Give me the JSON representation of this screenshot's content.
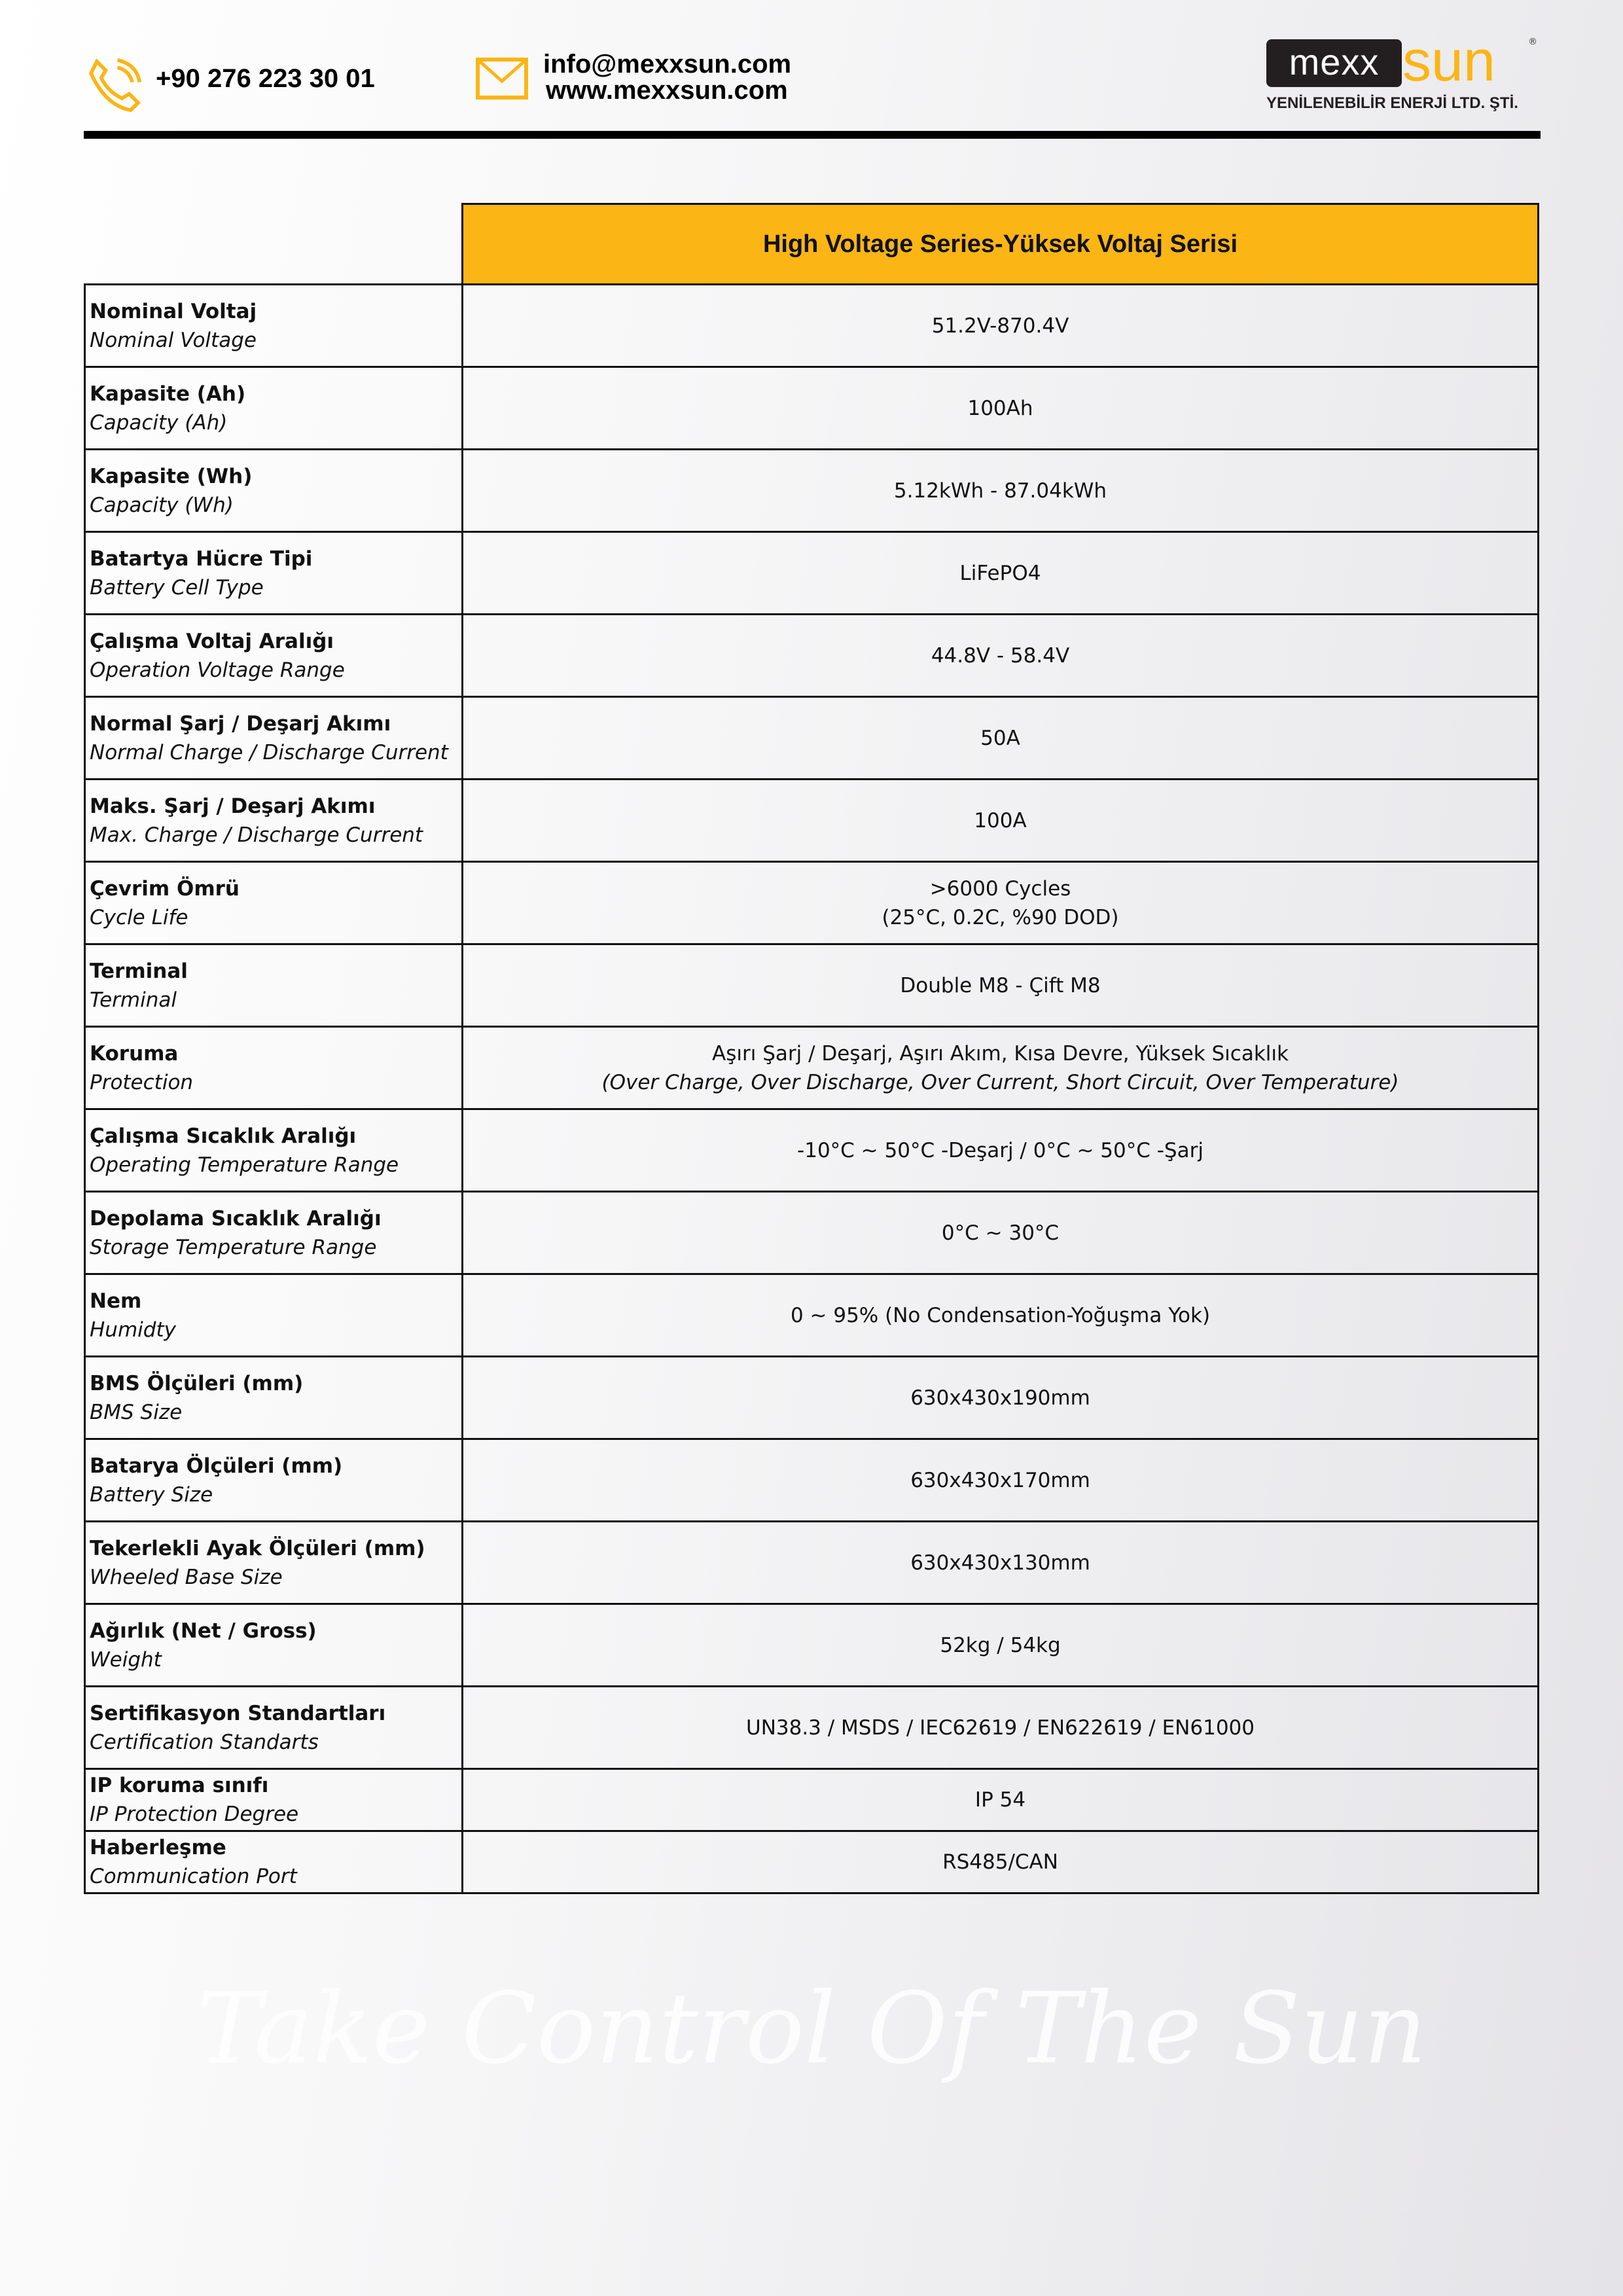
{
  "header": {
    "phone": "+90 276 223 30 01",
    "email": "info@mexxsun.com",
    "website": "www.mexxsun.com",
    "logo": {
      "left": "mexx",
      "right": "SUN",
      "subtitle": "YENİLENEBİLİR ENERJİ LTD. ŞTİ."
    },
    "accent": "#fbb515"
  },
  "table": {
    "title": "High Voltage Series-Yüksek Voltaj Serisi",
    "rows": [
      {
        "tr": "Nominal Voltaj",
        "en": "Nominal Voltage",
        "value": "51.2V-870.4V"
      },
      {
        "tr": "Kapasite (Ah)",
        "en": "Capacity (Ah)",
        "value": "100Ah"
      },
      {
        "tr": "Kapasite (Wh)",
        "en": "Capacity (Wh)",
        "value": "5.12kWh - 87.04kWh"
      },
      {
        "tr": "Batartya Hücre Tipi",
        "en": "Battery Cell Type",
        "value": "LiFePO4"
      },
      {
        "tr": "Çalışma Voltaj Aralığı",
        "en": "Operation Voltage Range",
        "value": "44.8V - 58.4V"
      },
      {
        "tr": "Normal Şarj / Deşarj Akımı",
        "en": "Normal Charge / Discharge Current",
        "value": "50A"
      },
      {
        "tr": "Maks. Şarj / Deşarj Akımı",
        "en": "Max. Charge / Discharge Current",
        "value": "100A"
      },
      {
        "tr": "Çevrim Ömrü",
        "en": "Cycle Life",
        "value": ">6000 Cycles",
        "value2": "(25°C, 0.2C, %90 DOD)"
      },
      {
        "tr": "Terminal",
        "en": "Terminal",
        "value": "Double M8 - Çift M8"
      },
      {
        "tr": "Koruma",
        "en": "Protection",
        "value": "Aşırı Şarj / Deşarj, Aşırı Akım, Kısa Devre, Yüksek Sıcaklık",
        "value2": "(Over Charge, Over Discharge, Over Current, Short Circuit, Over Temperature)"
      },
      {
        "tr": "Çalışma Sıcaklık Aralığı",
        "en": "Operating Temperature Range",
        "value": "-10°C ~ 50°C -Deşarj / 0°C ~ 50°C -Şarj"
      },
      {
        "tr": "Depolama Sıcaklık Aralığı",
        "en": "Storage Temperature Range",
        "value": "0°C ~ 30°C"
      },
      {
        "tr": "Nem",
        "en": "Humidty",
        "value": "0 ~ 95% (No Condensation-Yoğuşma Yok)"
      },
      {
        "tr": "BMS Ölçüleri (mm)",
        "en": "BMS Size",
        "value": "630x430x190mm"
      },
      {
        "tr": "Batarya Ölçüleri (mm)",
        "en": "Battery Size",
        "value": "630x430x170mm"
      },
      {
        "tr": "Tekerlekli Ayak Ölçüleri (mm)",
        "en": "Wheeled Base Size",
        "value": "630x430x130mm"
      },
      {
        "tr": "Ağırlık (Net / Gross)",
        "en": "Weight",
        "value": "52kg / 54kg"
      },
      {
        "tr": "Sertifikasyon Standartları",
        "en": "Certification Standarts",
        "value": "UN38.3 / MSDS / IEC62619 / EN622619 / EN61000"
      },
      {
        "tr": "IP koruma sınıfı",
        "en": "IP Protection Degree",
        "value": "IP 54"
      },
      {
        "tr": "Haberleşme",
        "en": "Communication Port",
        "value": "RS485/CAN"
      }
    ]
  },
  "watermark": "Take Control Of The Sun"
}
